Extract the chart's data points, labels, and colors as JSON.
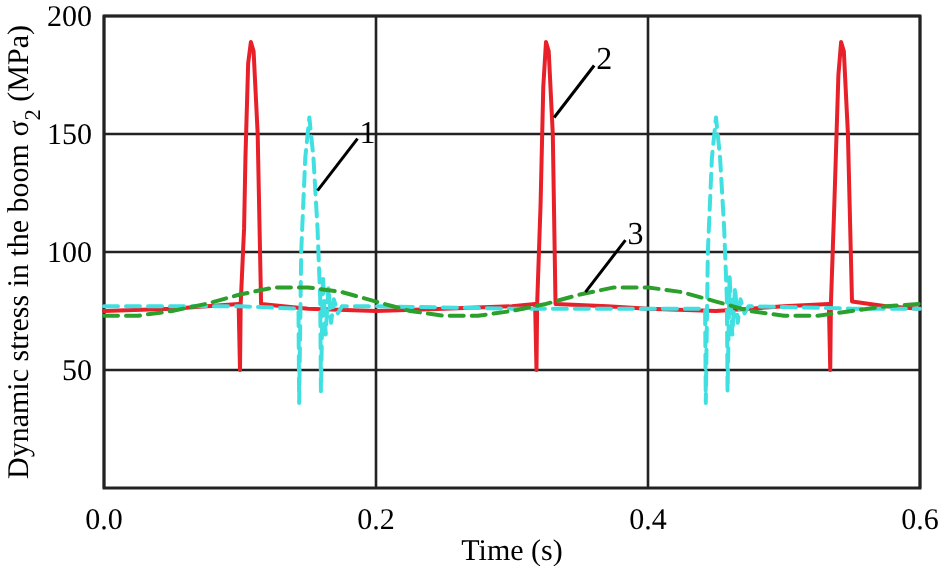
{
  "chart_data": {
    "type": "line",
    "xlabel": "Time (s)",
    "ylabel": "Dynamic stress in the boom σ$_{2}$ (MPa)",
    "xlim": [
      0,
      0.6
    ],
    "xticks": [
      {
        "value": 0,
        "label": "0.0"
      },
      0.2,
      0.4,
      0.6
    ],
    "ylim": [
      0,
      200
    ],
    "yticks": [
      50,
      100,
      150,
      200
    ],
    "grid": true,
    "marker": "none",
    "series": [
      {
        "color": "#e8202a",
        "line_style": "solid",
        "x": [
          0,
          0.05,
          0.099,
          0.1,
          0.1005,
          0.103,
          0.104,
          0.106,
          0.108,
          0.11,
          0.113,
          0.1155,
          0.15,
          0.2,
          0.25,
          0.3,
          0.317,
          0.318,
          0.3185,
          0.321,
          0.323,
          0.325,
          0.327,
          0.33,
          0.332,
          0.37,
          0.4,
          0.45,
          0.5,
          0.533,
          0.534,
          0.5345,
          0.537,
          0.54,
          0.542,
          0.544,
          0.547,
          0.55,
          0.575,
          0.6
        ],
        "values": [
          75,
          76,
          78,
          50,
          78,
          110,
          140,
          180,
          189,
          185,
          150,
          78,
          76,
          75,
          76,
          77,
          78,
          50,
          78,
          120,
          170,
          189,
          185,
          150,
          78,
          77,
          76,
          75,
          77,
          78,
          50,
          78,
          120,
          175,
          189,
          185,
          150,
          79,
          77,
          76
        ]
      },
      {
        "color": "#40e0e0",
        "line_style": "dashed",
        "x": [
          0,
          0.1,
          0.143,
          0.1435,
          0.145,
          0.148,
          0.151,
          0.154,
          0.157,
          0.159,
          0.1595,
          0.161,
          0.163,
          0.165,
          0.167,
          0.169,
          0.172,
          0.175,
          0.2,
          0.3,
          0.4,
          0.442,
          0.4425,
          0.444,
          0.447,
          0.45,
          0.453,
          0.456,
          0.458,
          0.4585,
          0.46,
          0.462,
          0.464,
          0.466,
          0.468,
          0.471,
          0.474,
          0.55,
          0.6
        ],
        "values": [
          77,
          77,
          76,
          36,
          100,
          140,
          157,
          140,
          110,
          80,
          41,
          90,
          65,
          85,
          70,
          80,
          74,
          77,
          77,
          76,
          76,
          76,
          36,
          100,
          140,
          157,
          140,
          110,
          80,
          41,
          90,
          65,
          85,
          70,
          80,
          74,
          77,
          76,
          76
        ]
      },
      {
        "color": "#2ca02c",
        "line_style": "dashed",
        "x": [
          0,
          0.025,
          0.05,
          0.075,
          0.1,
          0.125,
          0.15,
          0.175,
          0.2,
          0.225,
          0.25,
          0.275,
          0.3,
          0.325,
          0.35,
          0.375,
          0.4,
          0.425,
          0.45,
          0.475,
          0.5,
          0.525,
          0.55,
          0.575,
          0.6
        ],
        "values": [
          73,
          73,
          75,
          78,
          82,
          85,
          85,
          83,
          79,
          75,
          73,
          73,
          75,
          78,
          82,
          85,
          85,
          83,
          79,
          75,
          73,
          73,
          75,
          77,
          78
        ]
      }
    ],
    "annotations": [
      {
        "text": "1",
        "x": 0.157,
        "y": 126
      },
      {
        "text": "2",
        "x": 0.331,
        "y": 157
      },
      {
        "text": "3",
        "x": 0.354,
        "y": 83
      }
    ]
  }
}
